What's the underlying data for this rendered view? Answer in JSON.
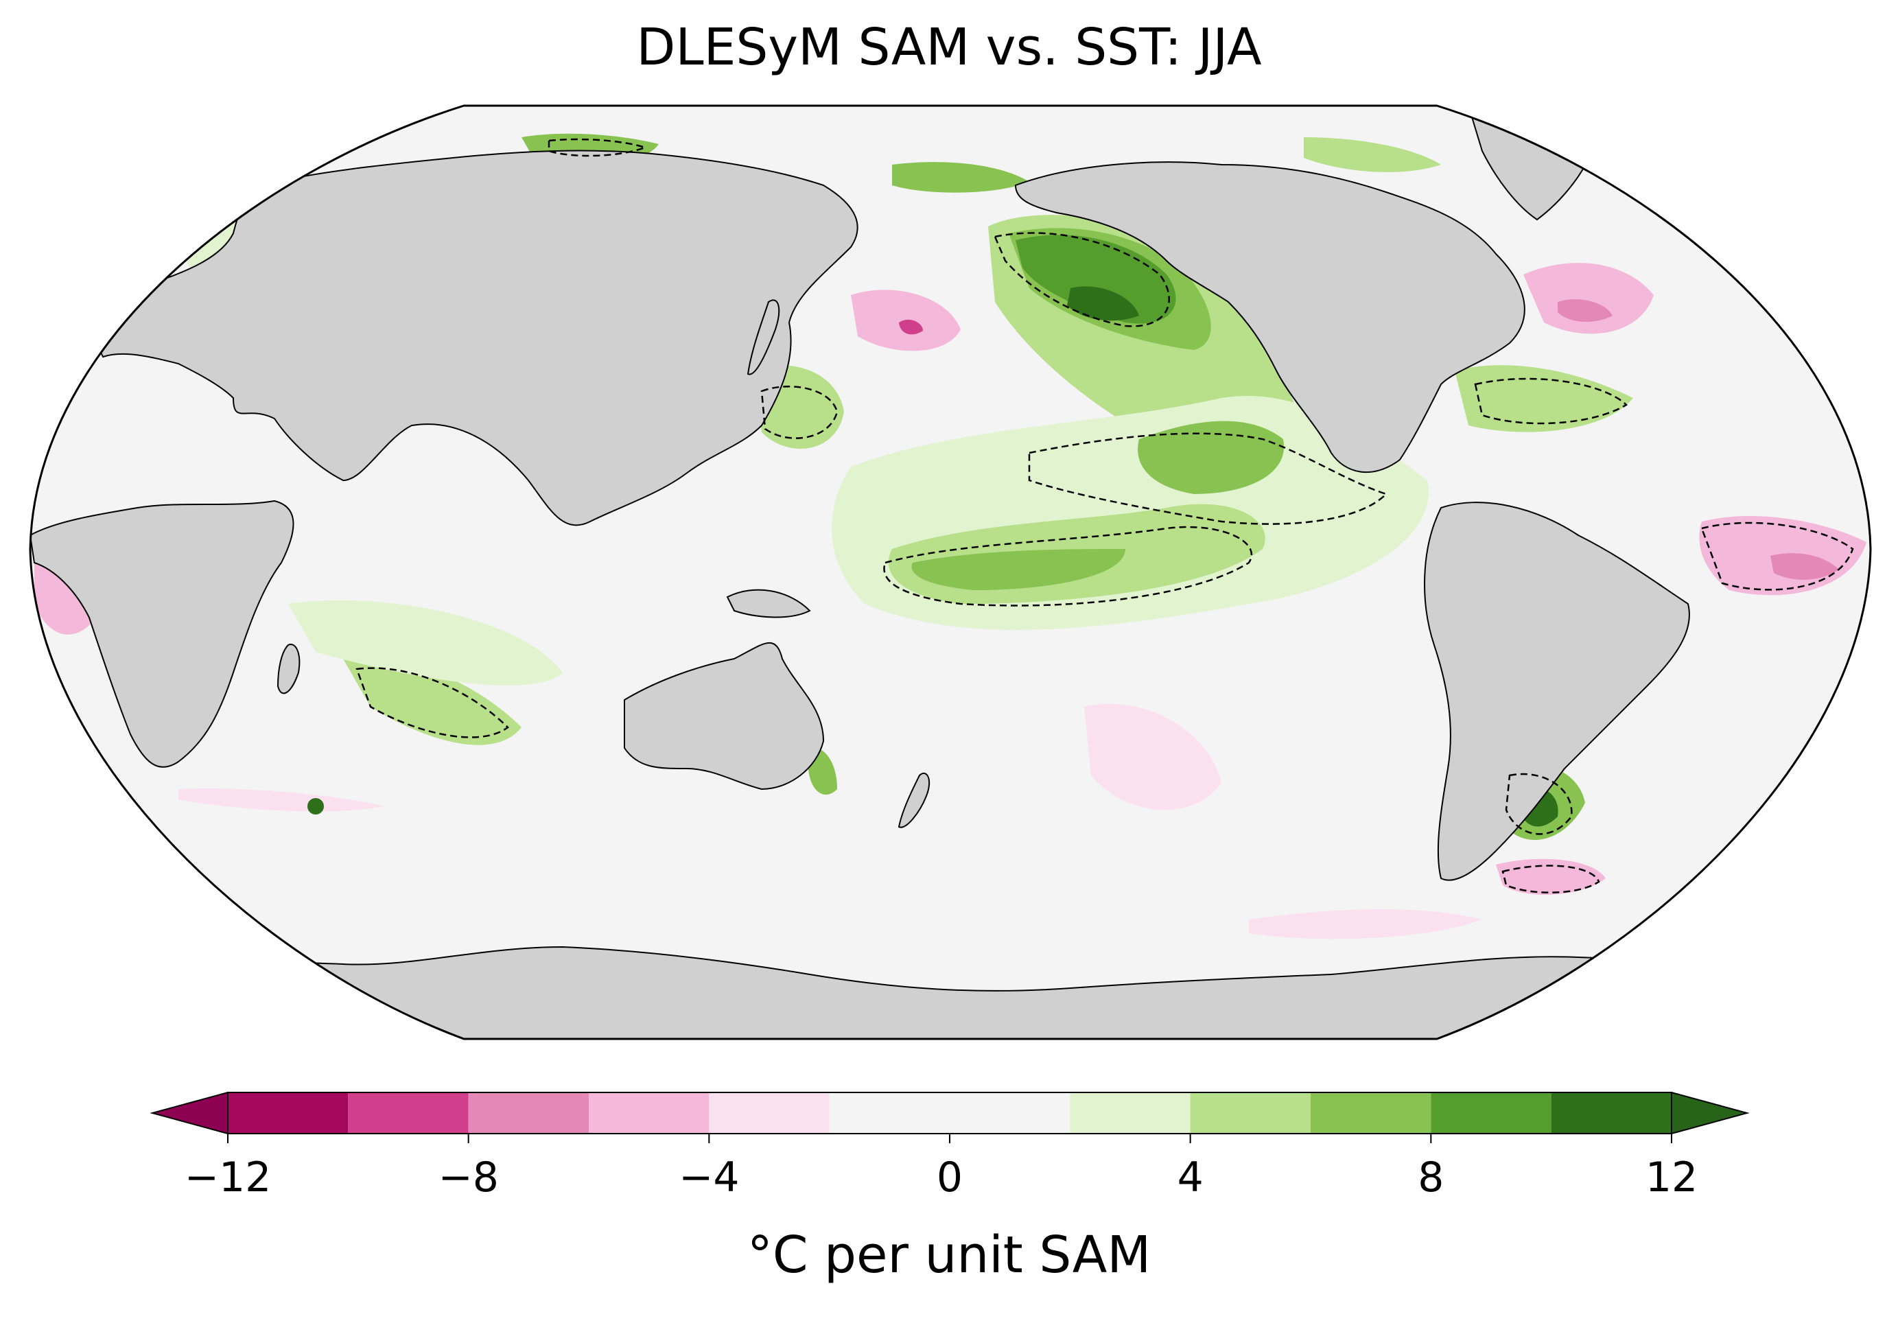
{
  "title": "DLESyM SAM vs. SST: JJA",
  "map": {
    "projection": "robinson",
    "central_longitude": 180,
    "ocean_background_color": "#f4f4f4",
    "land_color": "#d0d0d0",
    "coastline_color": "#000000",
    "significance_contour_style": "dashed"
  },
  "colorbar": {
    "label": "°C per unit SAM",
    "ticks": [
      -12,
      -8,
      -4,
      0,
      4,
      8,
      12
    ],
    "tick_labels": [
      "−12",
      "−8",
      "−4",
      "0",
      "4",
      "8",
      "12"
    ],
    "levels": [
      -12,
      -10,
      -8,
      -6,
      -4,
      -2,
      2,
      4,
      6,
      8,
      10,
      12
    ],
    "colors": [
      "#a4095e",
      "#d03f8c",
      "#e488b8",
      "#f3b8da",
      "#fbe0ef",
      "#f4f4f4",
      "#e2f3cf",
      "#b8e08a",
      "#88c251",
      "#559d2d",
      "#2e7019"
    ],
    "extend": "both",
    "extend_min_color": "#8e0152",
    "extend_max_color": "#276419"
  }
}
